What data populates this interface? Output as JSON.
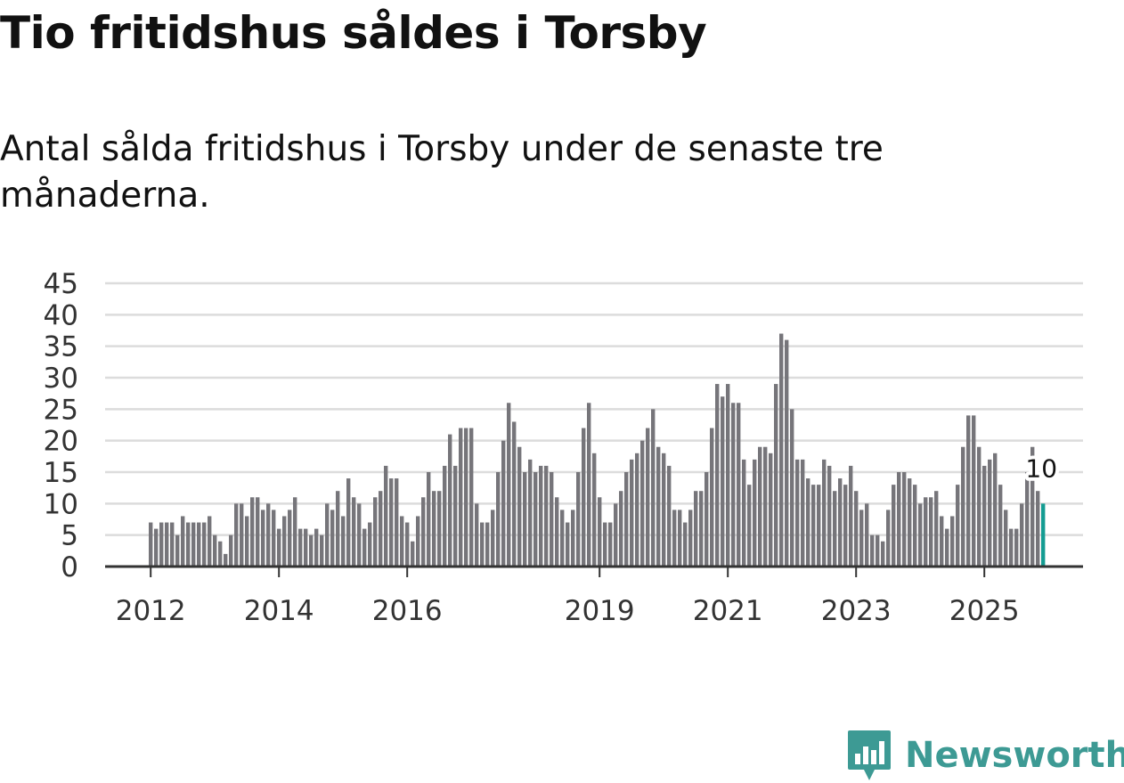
{
  "title": "Tio fritidshus såldes i Torsby",
  "subtitle": "Antal sålda fritidshus i Torsby under de senaste tre månaderna.",
  "brand": {
    "name": "Newsworthy",
    "color": "#3d9a94"
  },
  "colors": {
    "bar": "#76757a",
    "highlight": "#149c92",
    "grid": "#dcdcdc",
    "axis": "#333333"
  },
  "chart_data": {
    "type": "bar",
    "title": "Tio fritidshus såldes i Torsby",
    "subtitle": "Antal sålda fritidshus i Torsby under de senaste tre månaderna.",
    "xlabel": "",
    "ylabel": "",
    "ylim": [
      0,
      45
    ],
    "yticks": [
      0,
      5,
      10,
      15,
      20,
      25,
      30,
      35,
      40,
      45
    ],
    "grid": true,
    "x_start": "2012-01",
    "xticks": [
      {
        "label": "2012",
        "index": 0
      },
      {
        "label": "2014",
        "index": 24
      },
      {
        "label": "2016",
        "index": 48
      },
      {
        "label": "2019",
        "index": 84
      },
      {
        "label": "2021",
        "index": 108
      },
      {
        "label": "2023",
        "index": 132
      },
      {
        "label": "2025",
        "index": 156
      }
    ],
    "values": [
      7,
      6,
      7,
      7,
      7,
      5,
      8,
      7,
      7,
      7,
      7,
      8,
      5,
      4,
      2,
      5,
      10,
      10,
      8,
      11,
      11,
      9,
      10,
      9,
      6,
      8,
      9,
      11,
      6,
      6,
      5,
      6,
      5,
      10,
      9,
      12,
      8,
      14,
      11,
      10,
      6,
      7,
      11,
      12,
      16,
      14,
      14,
      8,
      7,
      4,
      8,
      11,
      15,
      12,
      12,
      16,
      21,
      16,
      22,
      22,
      22,
      10,
      7,
      7,
      9,
      15,
      20,
      26,
      23,
      19,
      15,
      17,
      15,
      16,
      16,
      15,
      11,
      9,
      7,
      9,
      15,
      22,
      26,
      18,
      11,
      7,
      7,
      10,
      12,
      15,
      17,
      18,
      20,
      22,
      25,
      19,
      18,
      16,
      9,
      9,
      7,
      9,
      12,
      12,
      15,
      22,
      29,
      27,
      29,
      26,
      26,
      17,
      13,
      17,
      19,
      19,
      18,
      29,
      37,
      36,
      25,
      17,
      17,
      14,
      13,
      13,
      17,
      16,
      12,
      14,
      13,
      16,
      12,
      9,
      10,
      5,
      5,
      4,
      9,
      13,
      15,
      15,
      14,
      13,
      10,
      11,
      11,
      12,
      8,
      6,
      8,
      13,
      19,
      24,
      24,
      19,
      16,
      17,
      18,
      13,
      9,
      6,
      6,
      10,
      15,
      19,
      12,
      10
    ],
    "highlight_index": 167,
    "annotation": {
      "index": 167,
      "text": "10"
    }
  }
}
